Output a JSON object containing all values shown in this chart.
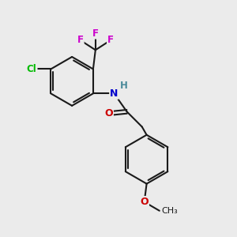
{
  "bg_color": "#ebebeb",
  "bond_color": "#1a1a1a",
  "bond_width": 1.5,
  "atom_colors": {
    "F": "#cc00cc",
    "Cl": "#00bb00",
    "N": "#0000cc",
    "O": "#cc0000",
    "H": "#4a8a9a",
    "C": "#1a1a1a"
  },
  "figsize": [
    3.0,
    3.0
  ],
  "dpi": 100
}
